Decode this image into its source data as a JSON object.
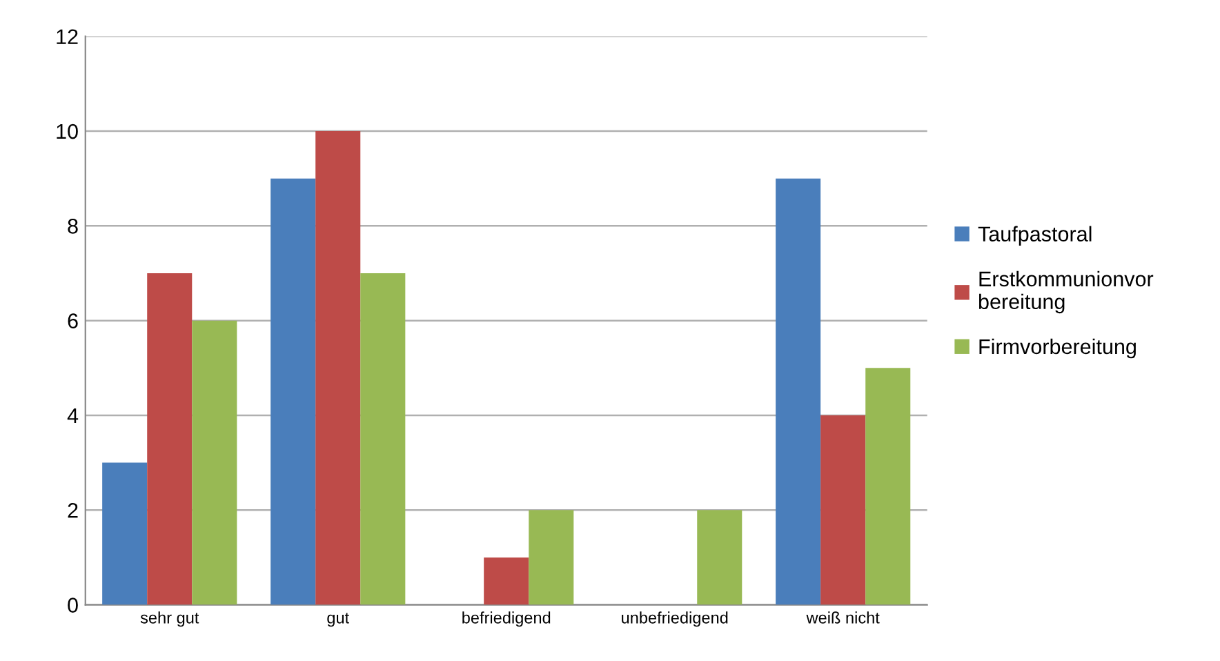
{
  "chart_data": {
    "type": "bar",
    "categories": [
      "sehr gut",
      "gut",
      "befriedigend",
      "unbefriedigend",
      "weiß nicht"
    ],
    "series": [
      {
        "name": "Taufpastoral",
        "color": "#4a7ebb",
        "values": [
          3,
          9,
          0,
          0,
          9
        ]
      },
      {
        "name": "Erstkommunionvorbereitung",
        "color": "#be4b48",
        "values": [
          7,
          10,
          1,
          0,
          4
        ]
      },
      {
        "name": "Firmvorbereitung",
        "color": "#98b954",
        "values": [
          6,
          7,
          2,
          2,
          5
        ]
      }
    ],
    "ylim": [
      0,
      12
    ],
    "yticks": [
      0,
      2,
      4,
      6,
      8,
      10,
      12
    ],
    "grid": "y",
    "legend": "right"
  }
}
